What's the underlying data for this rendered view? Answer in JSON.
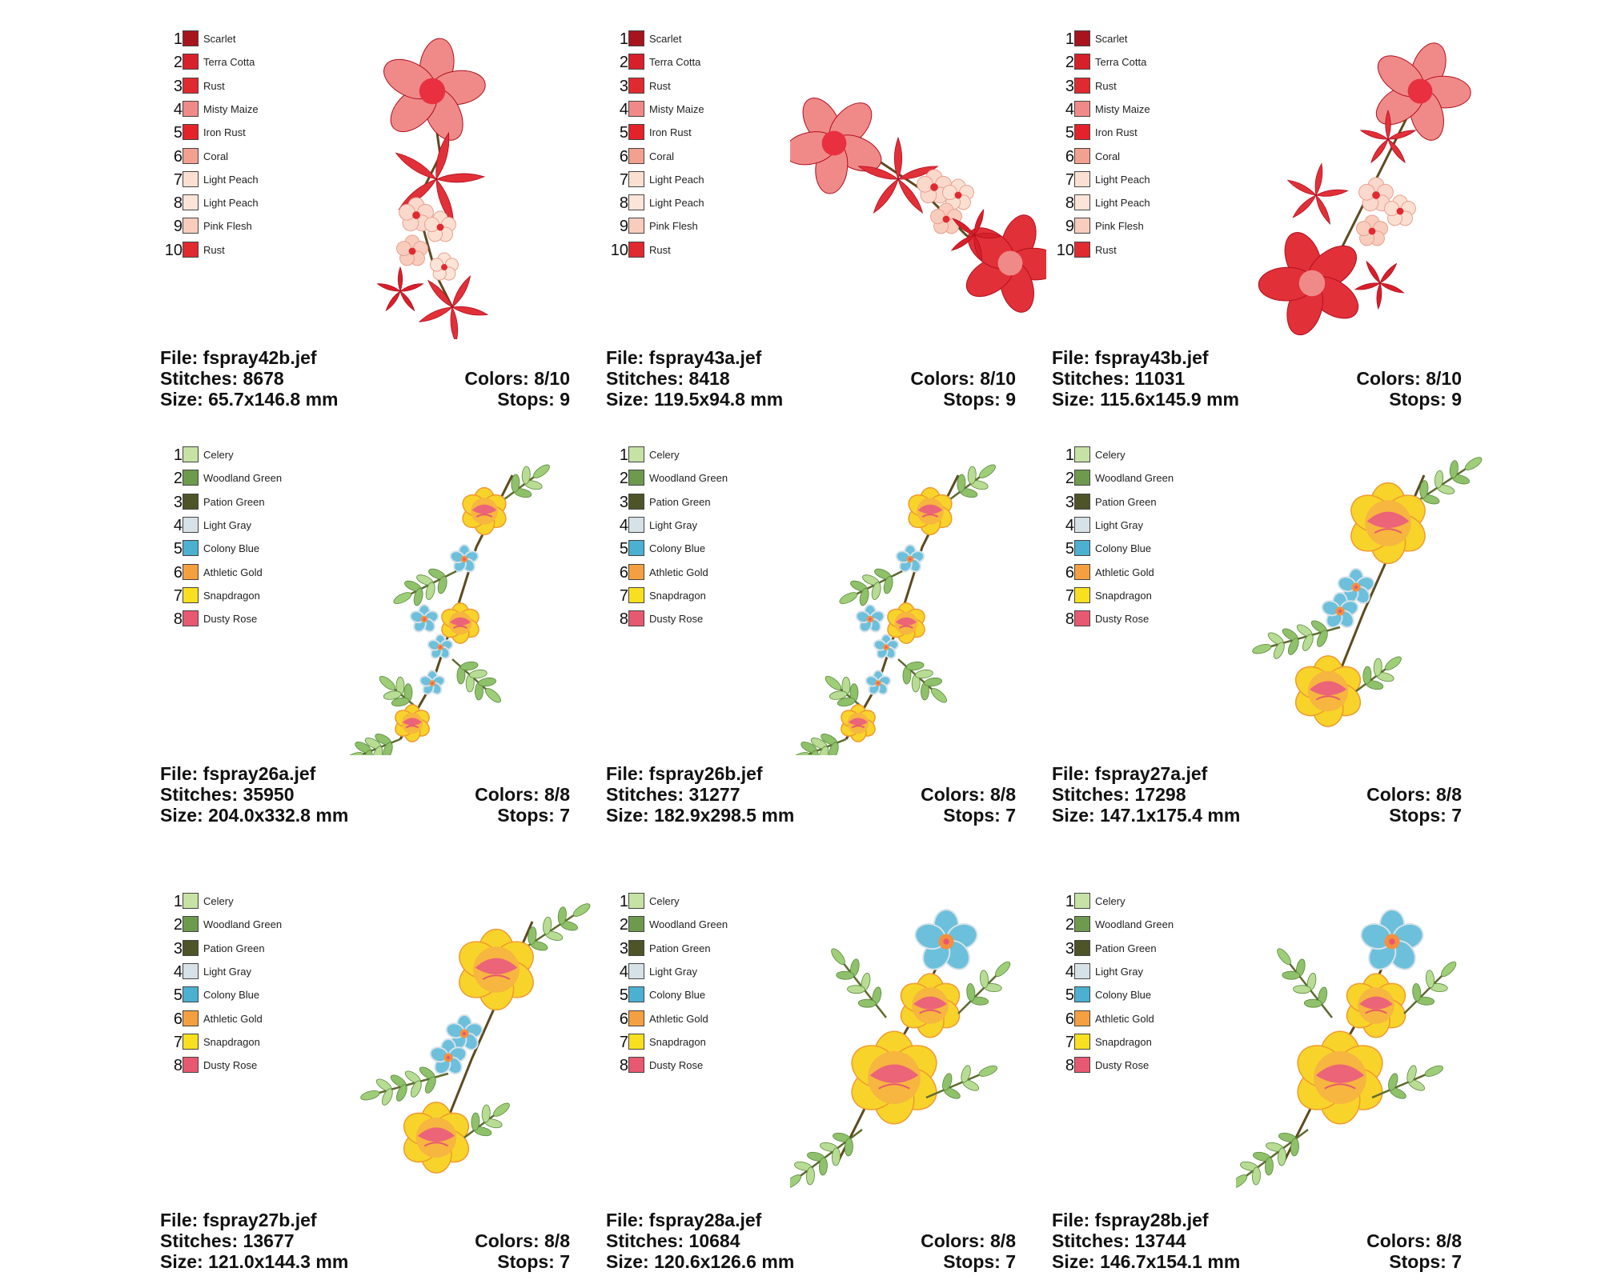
{
  "designs": [
    {
      "file": "File: fspray42b.jef",
      "stitches": "Stitches: 8678",
      "size": "Size: 65.7x146.8 mm",
      "colors": "Colors: 8/10",
      "stops": "Stops: 9",
      "art": "red-vertical",
      "palette": [
        {
          "num": "1",
          "name": "Scarlet",
          "color": "#a8141e"
        },
        {
          "num": "2",
          "name": "Terra Cotta",
          "color": "#d8202a"
        },
        {
          "num": "3",
          "name": "Rust",
          "color": "#e02a30"
        },
        {
          "num": "4",
          "name": "Misty Maize",
          "color": "#f08a88"
        },
        {
          "num": "5",
          "name": "Iron Rust",
          "color": "#e4222a"
        },
        {
          "num": "6",
          "name": "Coral",
          "color": "#f2a090"
        },
        {
          "num": "7",
          "name": "Light Peach",
          "color": "#fbe0d2"
        },
        {
          "num": "8",
          "name": "Light Peach",
          "color": "#fbe4d8"
        },
        {
          "num": "9",
          "name": "Pink Flesh",
          "color": "#f8cdbe"
        },
        {
          "num": "10",
          "name": "Rust",
          "color": "#e02a30"
        }
      ]
    },
    {
      "file": "File: fspray43a.jef",
      "stitches": "Stitches: 8418",
      "size": "Size: 119.5x94.8 mm",
      "colors": "Colors: 8/10",
      "stops": "Stops: 9",
      "art": "red-horizontal",
      "palette": [
        {
          "num": "1",
          "name": "Scarlet",
          "color": "#a8141e"
        },
        {
          "num": "2",
          "name": "Terra Cotta",
          "color": "#d8202a"
        },
        {
          "num": "3",
          "name": "Rust",
          "color": "#e02a30"
        },
        {
          "num": "4",
          "name": "Misty Maize",
          "color": "#f08a88"
        },
        {
          "num": "5",
          "name": "Iron Rust",
          "color": "#e4222a"
        },
        {
          "num": "6",
          "name": "Coral",
          "color": "#f2a090"
        },
        {
          "num": "7",
          "name": "Light Peach",
          "color": "#fbe0d2"
        },
        {
          "num": "8",
          "name": "Light Peach",
          "color": "#fbe4d8"
        },
        {
          "num": "9",
          "name": "Pink Flesh",
          "color": "#f8cdbe"
        },
        {
          "num": "10",
          "name": "Rust",
          "color": "#e02a30"
        }
      ]
    },
    {
      "file": "File: fspray43b.jef",
      "stitches": "Stitches: 11031",
      "size": "Size: 115.6x145.9 mm",
      "colors": "Colors: 8/10",
      "stops": "Stops: 9",
      "art": "red-diagonal",
      "palette": [
        {
          "num": "1",
          "name": "Scarlet",
          "color": "#a8141e"
        },
        {
          "num": "2",
          "name": "Terra Cotta",
          "color": "#d8202a"
        },
        {
          "num": "3",
          "name": "Rust",
          "color": "#e02a30"
        },
        {
          "num": "4",
          "name": "Misty Maize",
          "color": "#f08a88"
        },
        {
          "num": "5",
          "name": "Iron Rust",
          "color": "#e4222a"
        },
        {
          "num": "6",
          "name": "Coral",
          "color": "#f2a090"
        },
        {
          "num": "7",
          "name": "Light Peach",
          "color": "#fbe0d2"
        },
        {
          "num": "8",
          "name": "Light Peach",
          "color": "#fbe4d8"
        },
        {
          "num": "9",
          "name": "Pink Flesh",
          "color": "#f8cdbe"
        },
        {
          "num": "10",
          "name": "Rust",
          "color": "#e02a30"
        }
      ]
    },
    {
      "file": "File: fspray26a.jef",
      "stitches": "Stitches: 35950",
      "size": "Size: 204.0x332.8 mm",
      "colors": "Colors: 8/8",
      "stops": "Stops: 7",
      "art": "garden-long",
      "palette": [
        {
          "num": "1",
          "name": "Celery",
          "color": "#c6e2a4"
        },
        {
          "num": "2",
          "name": "Woodland Green",
          "color": "#6e9a4e"
        },
        {
          "num": "3",
          "name": "Pation Green",
          "color": "#4e5428"
        },
        {
          "num": "4",
          "name": "Light Gray",
          "color": "#d6e2e8"
        },
        {
          "num": "5",
          "name": "Colony Blue",
          "color": "#4cb0d0"
        },
        {
          "num": "6",
          "name": "Athletic Gold",
          "color": "#f4a040"
        },
        {
          "num": "7",
          "name": "Snapdragon",
          "color": "#f8e020"
        },
        {
          "num": "8",
          "name": "Dusty Rose",
          "color": "#e85870"
        }
      ]
    },
    {
      "file": "File: fspray26b.jef",
      "stitches": "Stitches: 31277",
      "size": "Size: 182.9x298.5 mm",
      "colors": "Colors: 8/8",
      "stops": "Stops: 7",
      "art": "garden-long",
      "palette": [
        {
          "num": "1",
          "name": "Celery",
          "color": "#c6e2a4"
        },
        {
          "num": "2",
          "name": "Woodland Green",
          "color": "#6e9a4e"
        },
        {
          "num": "3",
          "name": "Pation Green",
          "color": "#4e5428"
        },
        {
          "num": "4",
          "name": "Light Gray",
          "color": "#d6e2e8"
        },
        {
          "num": "5",
          "name": "Colony Blue",
          "color": "#4cb0d0"
        },
        {
          "num": "6",
          "name": "Athletic Gold",
          "color": "#f4a040"
        },
        {
          "num": "7",
          "name": "Snapdragon",
          "color": "#f8e020"
        },
        {
          "num": "8",
          "name": "Dusty Rose",
          "color": "#e85870"
        }
      ]
    },
    {
      "file": "File: fspray27a.jef",
      "stitches": "Stitches: 17298",
      "size": "Size: 147.1x175.4 mm",
      "colors": "Colors: 8/8",
      "stops": "Stops: 7",
      "art": "garden-mid",
      "palette": [
        {
          "num": "1",
          "name": "Celery",
          "color": "#c6e2a4"
        },
        {
          "num": "2",
          "name": "Woodland Green",
          "color": "#6e9a4e"
        },
        {
          "num": "3",
          "name": "Pation Green",
          "color": "#4e5428"
        },
        {
          "num": "4",
          "name": "Light Gray",
          "color": "#d6e2e8"
        },
        {
          "num": "5",
          "name": "Colony Blue",
          "color": "#4cb0d0"
        },
        {
          "num": "6",
          "name": "Athletic Gold",
          "color": "#f4a040"
        },
        {
          "num": "7",
          "name": "Snapdragon",
          "color": "#f8e020"
        },
        {
          "num": "8",
          "name": "Dusty Rose",
          "color": "#e85870"
        }
      ]
    },
    {
      "file": "File: fspray27b.jef",
      "stitches": "Stitches: 13677",
      "size": "Size: 121.0x144.3 mm",
      "colors": "Colors: 8/8",
      "stops": "Stops: 7",
      "art": "garden-mid",
      "palette": [
        {
          "num": "1",
          "name": "Celery",
          "color": "#c6e2a4"
        },
        {
          "num": "2",
          "name": "Woodland Green",
          "color": "#6e9a4e"
        },
        {
          "num": "3",
          "name": "Pation Green",
          "color": "#4e5428"
        },
        {
          "num": "4",
          "name": "Light Gray",
          "color": "#d6e2e8"
        },
        {
          "num": "5",
          "name": "Colony Blue",
          "color": "#4cb0d0"
        },
        {
          "num": "6",
          "name": "Athletic Gold",
          "color": "#f4a040"
        },
        {
          "num": "7",
          "name": "Snapdragon",
          "color": "#f8e020"
        },
        {
          "num": "8",
          "name": "Dusty Rose",
          "color": "#e85870"
        }
      ]
    },
    {
      "file": "File: fspray28a.jef",
      "stitches": "Stitches: 10684",
      "size": "Size: 120.6x126.6 mm",
      "colors": "Colors: 8/8",
      "stops": "Stops: 7",
      "art": "garden-big",
      "palette": [
        {
          "num": "1",
          "name": "Celery",
          "color": "#c6e2a4"
        },
        {
          "num": "2",
          "name": "Woodland Green",
          "color": "#6e9a4e"
        },
        {
          "num": "3",
          "name": "Pation Green",
          "color": "#4e5428"
        },
        {
          "num": "4",
          "name": "Light Gray",
          "color": "#d6e2e8"
        },
        {
          "num": "5",
          "name": "Colony Blue",
          "color": "#4cb0d0"
        },
        {
          "num": "6",
          "name": "Athletic Gold",
          "color": "#f4a040"
        },
        {
          "num": "7",
          "name": "Snapdragon",
          "color": "#f8e020"
        },
        {
          "num": "8",
          "name": "Dusty Rose",
          "color": "#e85870"
        }
      ]
    },
    {
      "file": "File: fspray28b.jef",
      "stitches": "Stitches: 13744",
      "size": "Size: 146.7x154.1 mm",
      "colors": "Colors: 8/8",
      "stops": "Stops: 7",
      "art": "garden-big",
      "palette": [
        {
          "num": "1",
          "name": "Celery",
          "color": "#c6e2a4"
        },
        {
          "num": "2",
          "name": "Woodland Green",
          "color": "#6e9a4e"
        },
        {
          "num": "3",
          "name": "Pation Green",
          "color": "#4e5428"
        },
        {
          "num": "4",
          "name": "Light Gray",
          "color": "#d6e2e8"
        },
        {
          "num": "5",
          "name": "Colony Blue",
          "color": "#4cb0d0"
        },
        {
          "num": "6",
          "name": "Athletic Gold",
          "color": "#f4a040"
        },
        {
          "num": "7",
          "name": "Snapdragon",
          "color": "#f8e020"
        },
        {
          "num": "8",
          "name": "Dusty Rose",
          "color": "#e85870"
        }
      ]
    }
  ]
}
